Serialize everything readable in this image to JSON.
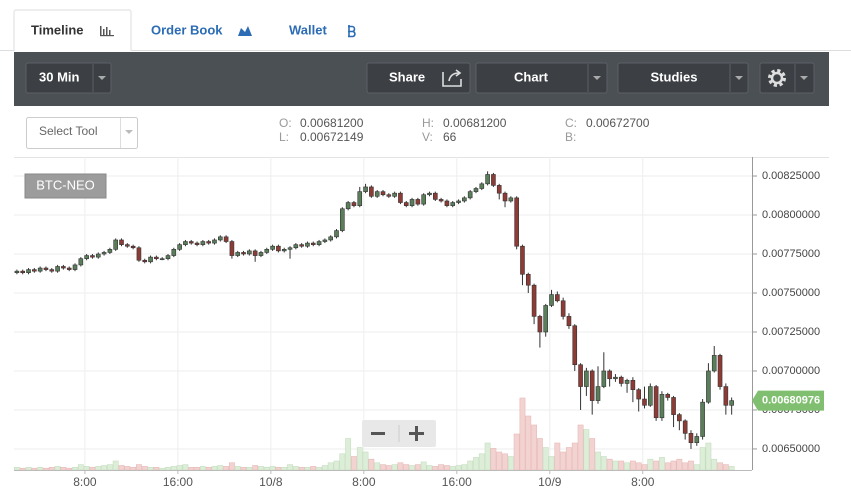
{
  "tabs": [
    "Timeline",
    "Order Book",
    "Wallet"
  ],
  "toolbar": {
    "interval": "30 Min",
    "share": "Share",
    "chart": "Chart",
    "studies": "Studies"
  },
  "tool_select": "Select Tool",
  "ohlc": {
    "o_label": "O:",
    "o": "0.00681200",
    "l_label": "L:",
    "l": "0.00672149",
    "h_label": "H:",
    "h": "0.00681200",
    "v_label": "V:",
    "v": 66,
    "c_label": "C:",
    "c": "0.00672700",
    "b_label": "B:"
  },
  "chart_data": {
    "type": "candlestick",
    "symbol": "BTC-NEO",
    "up_color": "#5a7d5a",
    "down_color": "#8e3b36",
    "volume_up_color": "#dcedd8",
    "volume_down_color": "#f3d3d1",
    "last_price_color": "#7fbf6f",
    "grid": true,
    "xlim": [
      -0.5,
      126.5
    ],
    "xticks": [
      {
        "value": 11.7,
        "label": "8:00"
      },
      {
        "value": 27.7,
        "label": "16:00"
      },
      {
        "value": 43.7,
        "label": "10/8"
      },
      {
        "value": 59.7,
        "label": "8:00"
      },
      {
        "value": 75.7,
        "label": "16:00"
      },
      {
        "value": 91.7,
        "label": "10/9"
      },
      {
        "value": 107.7,
        "label": "8:00"
      }
    ],
    "ylim": [
      0.006365,
      0.008372
    ],
    "yticks": [
      {
        "value": 0.0065,
        "label": "0.00650000"
      },
      {
        "value": 0.00675,
        "label": "0.00675000"
      },
      {
        "value": 0.007,
        "label": "0.00700000"
      },
      {
        "value": 0.00725,
        "label": "0.00725000"
      },
      {
        "value": 0.0075,
        "label": "0.00750000"
      },
      {
        "value": 0.00775,
        "label": "0.00775000"
      },
      {
        "value": 0.008,
        "label": "0.00800000"
      },
      {
        "value": 0.00825,
        "label": "0.00825000"
      }
    ],
    "volume_lim": [
      0,
      100
    ],
    "candles": [
      [
        0.00763,
        0.00765,
        0.00762,
        0.00764
      ],
      [
        0.00764,
        0.00765,
        0.00762,
        0.00763
      ],
      [
        0.00763,
        0.00766,
        0.00762,
        0.00765
      ],
      [
        0.00765,
        0.00766,
        0.00763,
        0.00764
      ],
      [
        0.00764,
        0.00767,
        0.00763,
        0.00766
      ],
      [
        0.00766,
        0.00767,
        0.00764,
        0.00765
      ],
      [
        0.00765,
        0.00766,
        0.00763,
        0.00764
      ],
      [
        0.00764,
        0.00768,
        0.00763,
        0.00767
      ],
      [
        0.00767,
        0.00768,
        0.00765,
        0.00766
      ],
      [
        0.00766,
        0.00767,
        0.00764,
        0.00765
      ],
      [
        0.00765,
        0.00769,
        0.00764,
        0.00768
      ],
      [
        0.00768,
        0.00773,
        0.00767,
        0.00772
      ],
      [
        0.00772,
        0.00775,
        0.00771,
        0.00774
      ],
      [
        0.00774,
        0.00775,
        0.00772,
        0.00773
      ],
      [
        0.00773,
        0.00776,
        0.00772,
        0.00775
      ],
      [
        0.00775,
        0.00777,
        0.00774,
        0.00776
      ],
      [
        0.00776,
        0.00779,
        0.00775,
        0.00778
      ],
      [
        0.00778,
        0.00785,
        0.00777,
        0.00784
      ],
      [
        0.00784,
        0.00785,
        0.0078,
        0.00781
      ],
      [
        0.00781,
        0.00782,
        0.00779,
        0.0078
      ],
      [
        0.0078,
        0.00781,
        0.00778,
        0.00779
      ],
      [
        0.00779,
        0.0078,
        0.0077,
        0.00771
      ],
      [
        0.00771,
        0.00772,
        0.00769,
        0.0077
      ],
      [
        0.0077,
        0.00774,
        0.00769,
        0.00773
      ],
      [
        0.00773,
        0.00774,
        0.00771,
        0.00772
      ],
      [
        0.00772,
        0.00773,
        0.00771,
        0.00772
      ],
      [
        0.00772,
        0.00775,
        0.00771,
        0.00774
      ],
      [
        0.00774,
        0.00779,
        0.00773,
        0.00778
      ],
      [
        0.00778,
        0.00782,
        0.00777,
        0.00781
      ],
      [
        0.00781,
        0.00784,
        0.0078,
        0.00783
      ],
      [
        0.00783,
        0.00784,
        0.00781,
        0.00782
      ],
      [
        0.00782,
        0.00783,
        0.0078,
        0.00781
      ],
      [
        0.00781,
        0.00784,
        0.0078,
        0.00783
      ],
      [
        0.00783,
        0.00784,
        0.00781,
        0.00782
      ],
      [
        0.00782,
        0.00785,
        0.00781,
        0.00784
      ],
      [
        0.00784,
        0.00787,
        0.00783,
        0.00786
      ],
      [
        0.00786,
        0.00787,
        0.00782,
        0.00783
      ],
      [
        0.00783,
        0.00784,
        0.00772,
        0.00774
      ],
      [
        0.00774,
        0.00777,
        0.00773,
        0.00776
      ],
      [
        0.00776,
        0.00777,
        0.00774,
        0.00775
      ],
      [
        0.00775,
        0.00778,
        0.00774,
        0.00777
      ],
      [
        0.00777,
        0.00778,
        0.0077,
        0.00774
      ],
      [
        0.00774,
        0.00777,
        0.00773,
        0.00776
      ],
      [
        0.00776,
        0.00779,
        0.00775,
        0.00778
      ],
      [
        0.00778,
        0.00781,
        0.00777,
        0.0078
      ],
      [
        0.0078,
        0.00781,
        0.00776,
        0.00777
      ],
      [
        0.00777,
        0.00779,
        0.00776,
        0.00778
      ],
      [
        0.00778,
        0.0078,
        0.00772,
        0.00779
      ],
      [
        0.00779,
        0.00782,
        0.00778,
        0.00781
      ],
      [
        0.00781,
        0.00782,
        0.00779,
        0.0078
      ],
      [
        0.0078,
        0.00783,
        0.00779,
        0.00782
      ],
      [
        0.00782,
        0.00783,
        0.0078,
        0.00781
      ],
      [
        0.00781,
        0.00784,
        0.0078,
        0.00783
      ],
      [
        0.00783,
        0.00785,
        0.00782,
        0.00784
      ],
      [
        0.00784,
        0.00787,
        0.00783,
        0.00786
      ],
      [
        0.00786,
        0.00791,
        0.00785,
        0.0079
      ],
      [
        0.0079,
        0.00805,
        0.00789,
        0.00804
      ],
      [
        0.00804,
        0.00809,
        0.00803,
        0.00808
      ],
      [
        0.00808,
        0.00809,
        0.00805,
        0.00806
      ],
      [
        0.00806,
        0.00818,
        0.00805,
        0.00815
      ],
      [
        0.00815,
        0.0082,
        0.00814,
        0.00818
      ],
      [
        0.00818,
        0.00819,
        0.00811,
        0.00812
      ],
      [
        0.00812,
        0.00816,
        0.00811,
        0.00815
      ],
      [
        0.00815,
        0.00816,
        0.00812,
        0.00813
      ],
      [
        0.00813,
        0.00814,
        0.00811,
        0.00812
      ],
      [
        0.00812,
        0.00815,
        0.00811,
        0.00814
      ],
      [
        0.00814,
        0.00815,
        0.00807,
        0.00808
      ],
      [
        0.00808,
        0.00809,
        0.00805,
        0.00806
      ],
      [
        0.00806,
        0.00811,
        0.00805,
        0.0081
      ],
      [
        0.0081,
        0.00811,
        0.00806,
        0.00807
      ],
      [
        0.00807,
        0.00814,
        0.00806,
        0.00813
      ],
      [
        0.00813,
        0.00815,
        0.00812,
        0.00814
      ],
      [
        0.00814,
        0.00815,
        0.00809,
        0.0081
      ],
      [
        0.0081,
        0.00811,
        0.00808,
        0.00809
      ],
      [
        0.00809,
        0.0081,
        0.00805,
        0.00806
      ],
      [
        0.00806,
        0.00809,
        0.00805,
        0.00808
      ],
      [
        0.00808,
        0.0081,
        0.00807,
        0.00809
      ],
      [
        0.00809,
        0.00812,
        0.00808,
        0.00811
      ],
      [
        0.00811,
        0.00816,
        0.0081,
        0.00815
      ],
      [
        0.00815,
        0.00818,
        0.00814,
        0.00817
      ],
      [
        0.00817,
        0.00821,
        0.00816,
        0.0082
      ],
      [
        0.0082,
        0.00828,
        0.00819,
        0.00826
      ],
      [
        0.00826,
        0.00827,
        0.00818,
        0.00819
      ],
      [
        0.00819,
        0.0082,
        0.0081,
        0.00814
      ],
      [
        0.00814,
        0.00815,
        0.00805,
        0.00809
      ],
      [
        0.00809,
        0.00812,
        0.00808,
        0.00811
      ],
      [
        0.00811,
        0.00812,
        0.00778,
        0.0078
      ],
      [
        0.0078,
        0.00781,
        0.00755,
        0.00762
      ],
      [
        0.00762,
        0.00763,
        0.0075,
        0.00755
      ],
      [
        0.00755,
        0.00756,
        0.0073,
        0.00735
      ],
      [
        0.00735,
        0.00736,
        0.00715,
        0.00725
      ],
      [
        0.00725,
        0.00743,
        0.00722,
        0.00742
      ],
      [
        0.00742,
        0.00752,
        0.00741,
        0.00749
      ],
      [
        0.00749,
        0.00751,
        0.00744,
        0.00745
      ],
      [
        0.00745,
        0.00747,
        0.00733,
        0.00735
      ],
      [
        0.00735,
        0.00737,
        0.00727,
        0.00729
      ],
      [
        0.00729,
        0.0073,
        0.007,
        0.00704
      ],
      [
        0.00704,
        0.00705,
        0.00675,
        0.0069
      ],
      [
        0.0069,
        0.00702,
        0.00684,
        0.007
      ],
      [
        0.007,
        0.00701,
        0.00672,
        0.00681
      ],
      [
        0.00681,
        0.00703,
        0.00679,
        0.0069
      ],
      [
        0.0069,
        0.00712,
        0.00689,
        0.007
      ],
      [
        0.007,
        0.00701,
        0.0069,
        0.00695
      ],
      [
        0.00695,
        0.00698,
        0.00693,
        0.00696
      ],
      [
        0.00696,
        0.00697,
        0.0069,
        0.00692
      ],
      [
        0.00692,
        0.00695,
        0.00686,
        0.00694
      ],
      [
        0.00694,
        0.00696,
        0.0068,
        0.00688
      ],
      [
        0.00688,
        0.00689,
        0.00674,
        0.00682
      ],
      [
        0.00682,
        0.0069,
        0.00676,
        0.00678
      ],
      [
        0.00678,
        0.00692,
        0.00677,
        0.0069
      ],
      [
        0.0069,
        0.00691,
        0.00668,
        0.0067
      ],
      [
        0.0067,
        0.00687,
        0.00668,
        0.00685
      ],
      [
        0.00685,
        0.00686,
        0.00681,
        0.00683
      ],
      [
        0.00683,
        0.00684,
        0.00664,
        0.00672
      ],
      [
        0.00672,
        0.00673,
        0.00662,
        0.00668
      ],
      [
        0.00668,
        0.00669,
        0.00656,
        0.0066
      ],
      [
        0.0066,
        0.00662,
        0.0065,
        0.00654
      ],
      [
        0.00654,
        0.0066,
        0.00652,
        0.00658
      ],
      [
        0.00658,
        0.00682,
        0.00656,
        0.0068
      ],
      [
        0.0068,
        0.00705,
        0.00679,
        0.007
      ],
      [
        0.007,
        0.00716,
        0.00699,
        0.0071
      ],
      [
        0.0071,
        0.00711,
        0.00688,
        0.0069
      ],
      [
        0.0069,
        0.00692,
        0.00672,
        0.00678
      ],
      [
        0.00678,
        0.00683,
        0.00672,
        0.00680976
      ]
    ],
    "volume": [
      3,
      2,
      3,
      2,
      3,
      2,
      3,
      4,
      3,
      2,
      3,
      6,
      4,
      3,
      4,
      5,
      6,
      10,
      5,
      4,
      3,
      6,
      4,
      3,
      3,
      2,
      3,
      4,
      5,
      6,
      3,
      3,
      4,
      3,
      4,
      5,
      4,
      8,
      4,
      3,
      3,
      5,
      4,
      3,
      4,
      3,
      3,
      6,
      4,
      3,
      3,
      4,
      3,
      5,
      8,
      10,
      18,
      35,
      15,
      25,
      20,
      12,
      8,
      6,
      5,
      6,
      8,
      6,
      5,
      6,
      9,
      5,
      4,
      6,
      5,
      4,
      5,
      6,
      10,
      14,
      18,
      30,
      24,
      20,
      18,
      15,
      40,
      80,
      60,
      50,
      35,
      25,
      15,
      30,
      20,
      25,
      30,
      50,
      45,
      35,
      20,
      15,
      12,
      10,
      10,
      8,
      10,
      8,
      6,
      12,
      10,
      14,
      8,
      10,
      12,
      8,
      10,
      6,
      25,
      30,
      12,
      8,
      6,
      4
    ]
  }
}
